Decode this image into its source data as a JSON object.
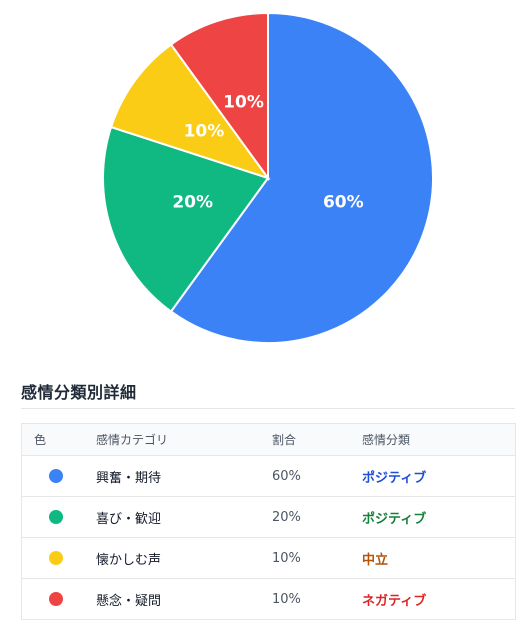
{
  "chart_data": {
    "type": "pie",
    "slices": [
      {
        "label": "興奮・期待",
        "value": 60,
        "color": "#3b82f6",
        "display": "60%"
      },
      {
        "label": "喜び・歓迎",
        "value": 20,
        "color": "#10b981",
        "display": "20%"
      },
      {
        "label": "懐かしむ声",
        "value": 10,
        "color": "#facc15",
        "display": "10%"
      },
      {
        "label": "懸念・疑問",
        "value": 10,
        "color": "#ef4444",
        "display": "10%"
      }
    ]
  },
  "detail": {
    "title": "感情分類別詳細",
    "headers": {
      "color": "色",
      "category": "感情カテゴリ",
      "ratio": "割合",
      "classification": "感情分類"
    },
    "rows": [
      {
        "color": "#3b82f6",
        "category": "興奮・期待",
        "ratio": "60%",
        "classification": "ポジティブ",
        "class_color": "#1d4ed8"
      },
      {
        "color": "#10b981",
        "category": "喜び・歓迎",
        "ratio": "20%",
        "classification": "ポジティブ",
        "class_color": "#15803d"
      },
      {
        "color": "#facc15",
        "category": "懐かしむ声",
        "ratio": "10%",
        "classification": "中立",
        "class_color": "#b45309"
      },
      {
        "color": "#ef4444",
        "category": "懸念・疑問",
        "ratio": "10%",
        "classification": "ネガティブ",
        "class_color": "#dc2626"
      }
    ]
  }
}
